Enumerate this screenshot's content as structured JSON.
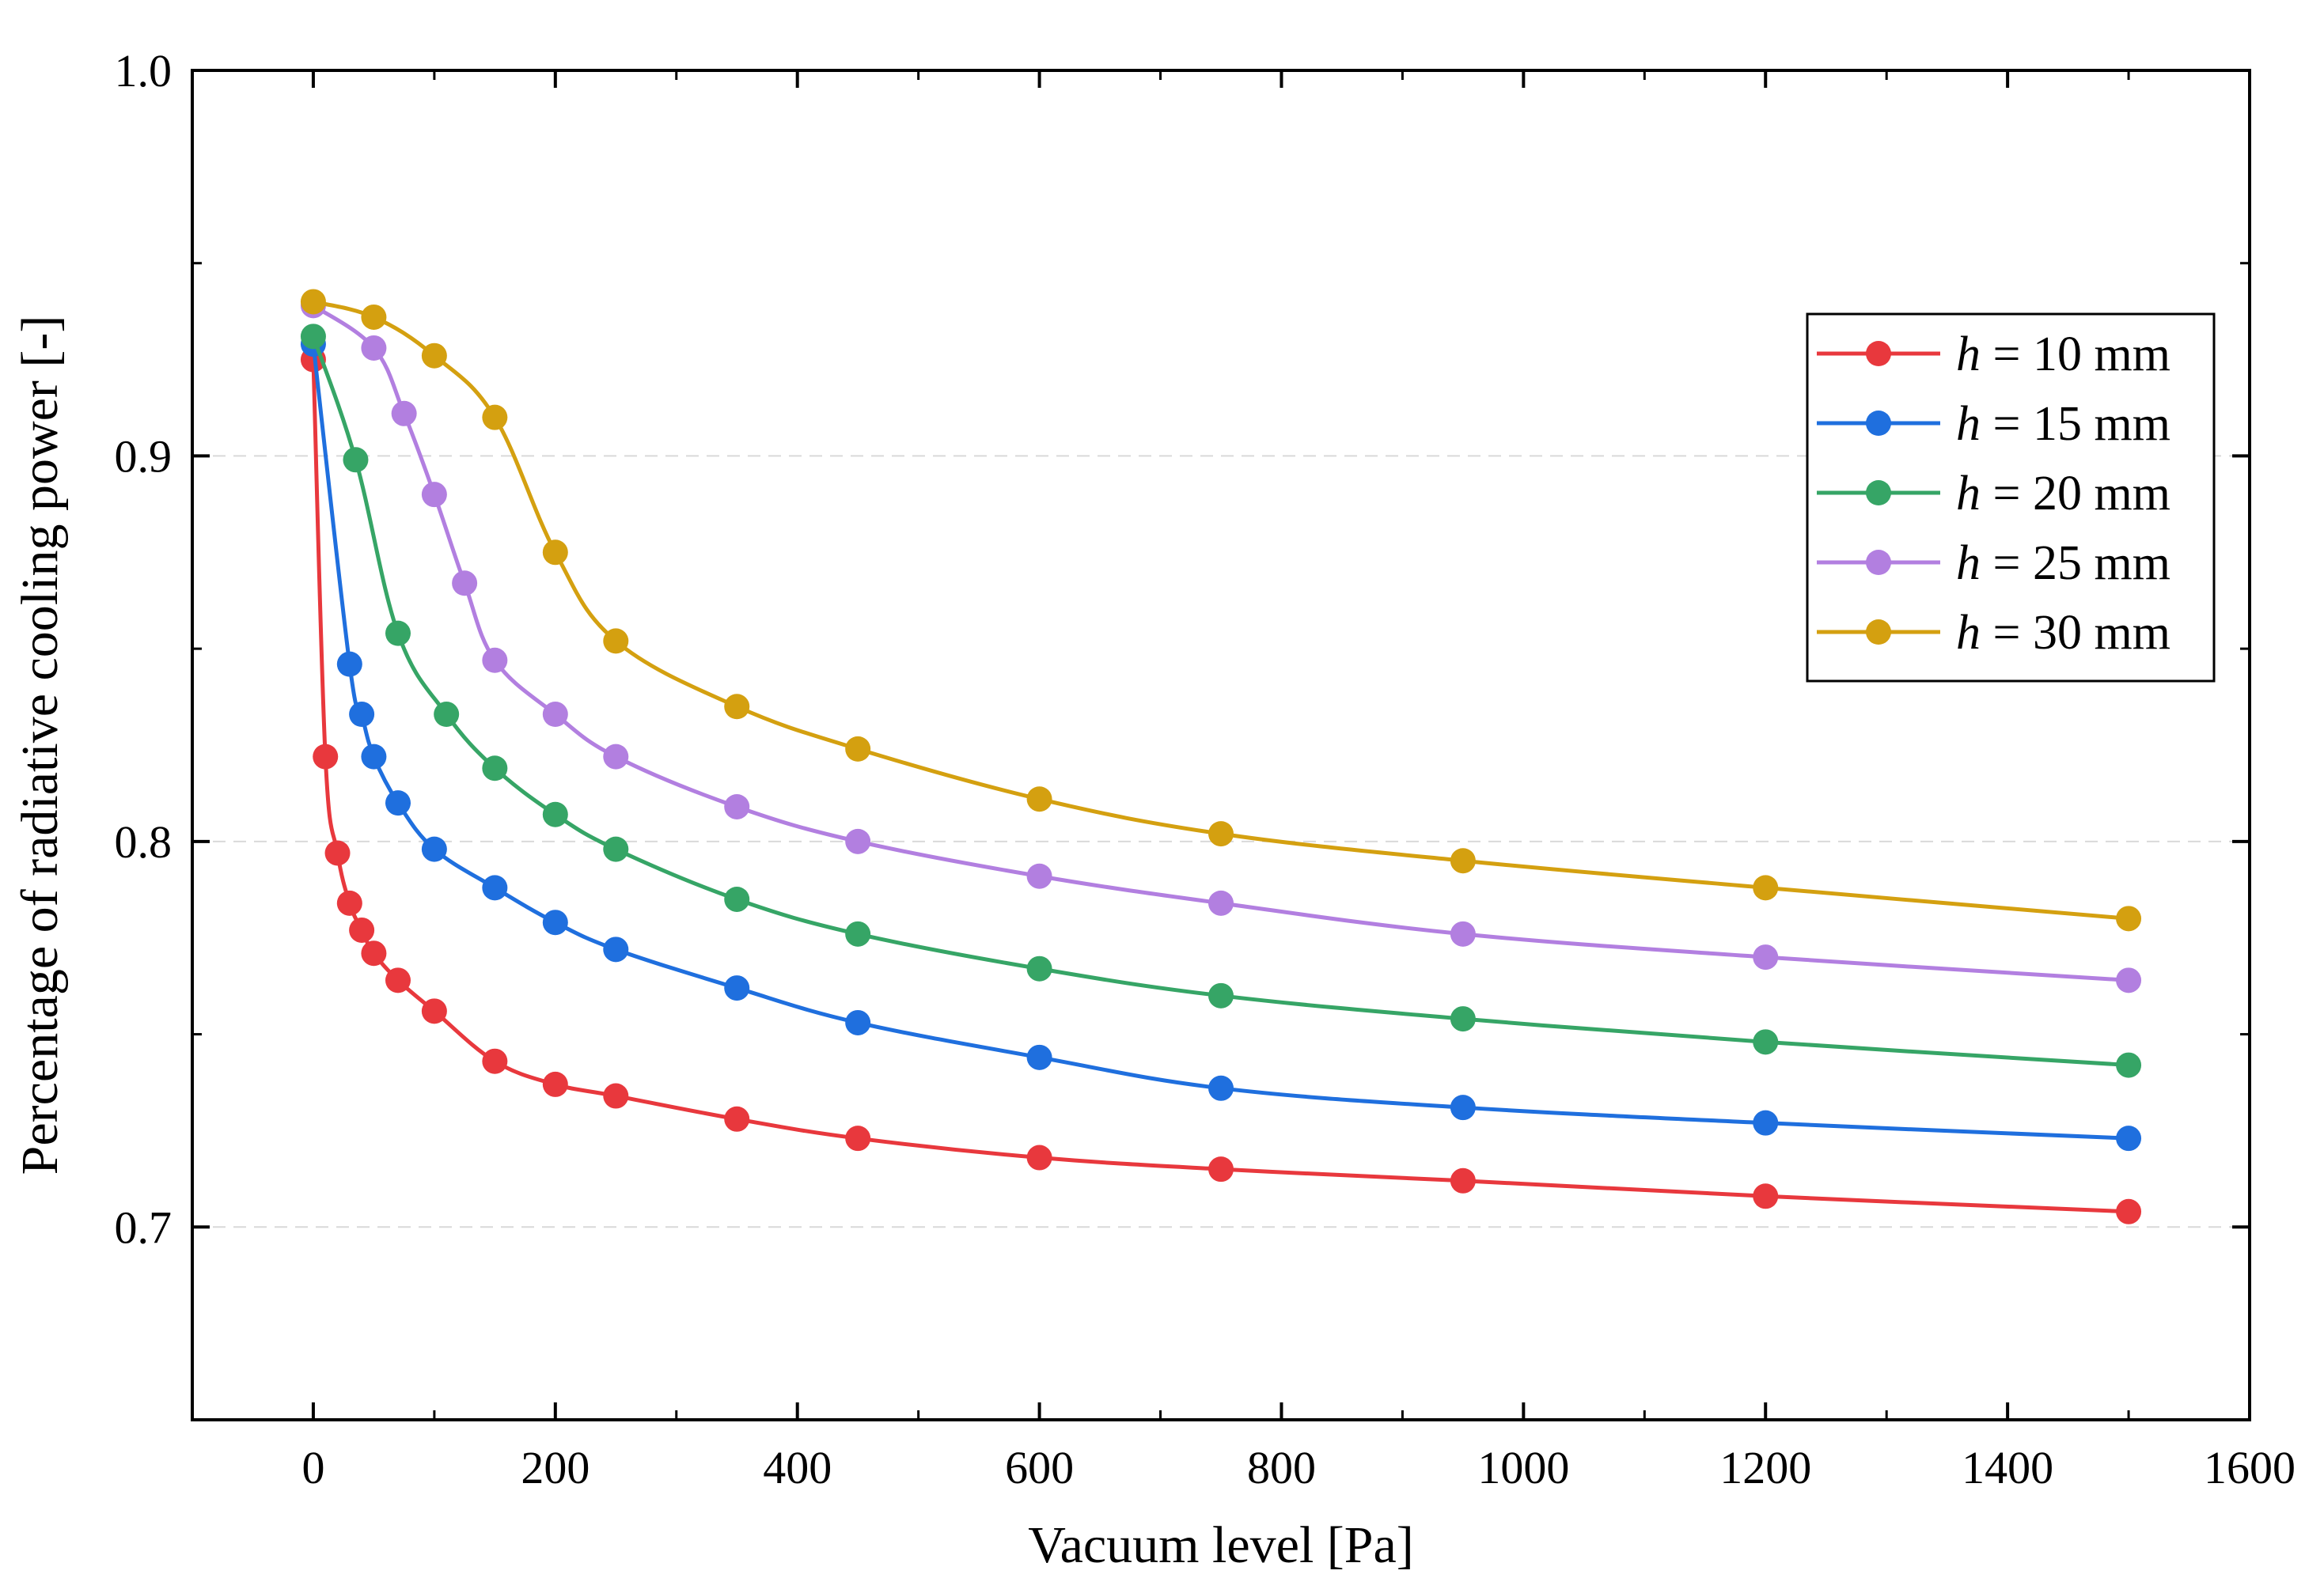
{
  "chart_data": {
    "type": "line",
    "title": "",
    "xlabel": "Vacuum level [Pa]",
    "ylabel": "Percentage of radiative cooling power [-]",
    "xlim": [
      -100,
      1600
    ],
    "ylim": [
      0.65,
      1.0
    ],
    "xticks": [
      0,
      200,
      400,
      600,
      800,
      1000,
      1200,
      1400,
      1600
    ],
    "yticks": [
      0.7,
      0.8,
      0.9,
      1.0
    ],
    "xtick_labels": [
      "0",
      "200",
      "400",
      "600",
      "800",
      "1000",
      "1200",
      "1400",
      "1600"
    ],
    "ytick_labels": [
      "0.7",
      "0.8",
      "0.9",
      "1.0"
    ],
    "grid": "horizontal dashed at major y ticks",
    "legend_position": "top-right",
    "series": [
      {
        "name": "h = 10 mm",
        "var": "h",
        "rest": " = 10 mm",
        "color": "#e8383d",
        "x": [
          0,
          10,
          20,
          30,
          40,
          50,
          70,
          100,
          150,
          200,
          250,
          350,
          450,
          600,
          750,
          950,
          1200,
          1500
        ],
        "y": [
          0.925,
          0.822,
          0.797,
          0.784,
          0.777,
          0.771,
          0.764,
          0.756,
          0.743,
          0.737,
          0.734,
          0.728,
          0.723,
          0.718,
          0.715,
          0.712,
          0.708,
          0.704
        ]
      },
      {
        "name": "h = 15 mm",
        "var": "h",
        "rest": " = 15 mm",
        "color": "#1f6fde",
        "x": [
          0,
          30,
          40,
          50,
          70,
          100,
          150,
          200,
          250,
          350,
          450,
          600,
          750,
          950,
          1200,
          1500
        ],
        "y": [
          0.929,
          0.846,
          0.833,
          0.822,
          0.81,
          0.798,
          0.788,
          0.779,
          0.772,
          0.762,
          0.753,
          0.744,
          0.736,
          0.731,
          0.727,
          0.723
        ]
      },
      {
        "name": "h = 20 mm",
        "var": "h",
        "rest": " = 20 mm",
        "color": "#36a566",
        "x": [
          0,
          35,
          70,
          110,
          150,
          200,
          250,
          350,
          450,
          600,
          750,
          950,
          1200,
          1500
        ],
        "y": [
          0.931,
          0.899,
          0.854,
          0.833,
          0.819,
          0.807,
          0.798,
          0.785,
          0.776,
          0.767,
          0.76,
          0.754,
          0.748,
          0.742
        ]
      },
      {
        "name": "h = 25 mm",
        "var": "h",
        "rest": " = 25 mm",
        "color": "#b27fe0",
        "x": [
          0,
          50,
          75,
          100,
          125,
          150,
          200,
          250,
          350,
          450,
          600,
          750,
          950,
          1200,
          1500
        ],
        "y": [
          0.939,
          0.928,
          0.911,
          0.89,
          0.867,
          0.847,
          0.833,
          0.822,
          0.809,
          0.8,
          0.791,
          0.784,
          0.776,
          0.77,
          0.764
        ]
      },
      {
        "name": "h = 30 mm",
        "var": "h",
        "rest": " = 30 mm",
        "color": "#d4a010",
        "x": [
          0,
          50,
          100,
          150,
          200,
          250,
          350,
          450,
          600,
          750,
          950,
          1200,
          1500
        ],
        "y": [
          0.94,
          0.936,
          0.926,
          0.91,
          0.875,
          0.852,
          0.835,
          0.824,
          0.811,
          0.802,
          0.795,
          0.788,
          0.78
        ]
      }
    ]
  }
}
